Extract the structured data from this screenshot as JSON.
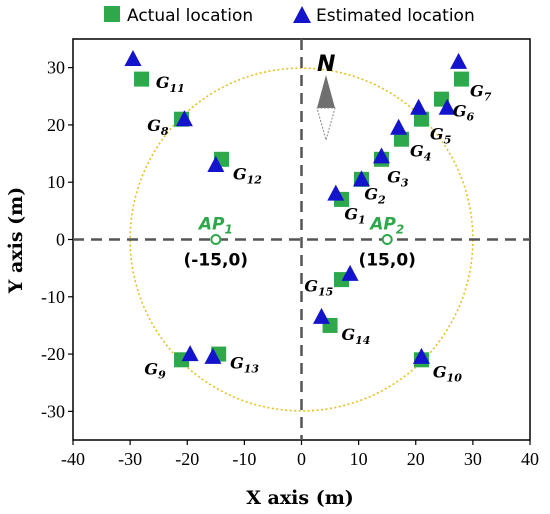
{
  "chart_data": {
    "type": "scatter",
    "xlabel": "X axis (m)",
    "ylabel": "Y axis (m)",
    "xlim": [
      -40,
      40
    ],
    "ylim": [
      -35,
      35
    ],
    "xticks": [
      -40,
      -30,
      -20,
      -10,
      0,
      10,
      20,
      30,
      40
    ],
    "yticks": [
      -30,
      -20,
      -10,
      0,
      10,
      20,
      30
    ],
    "legend": {
      "placement": "top",
      "entries": [
        "Actual location",
        "Estimated location"
      ]
    },
    "colors": {
      "actual": "#2ea84a",
      "estimated": "#1414cc",
      "circle": "#e8c020",
      "ap": "#2ea84a"
    },
    "circle": {
      "center": [
        0,
        0
      ],
      "radius": 30
    },
    "north_label": "N",
    "access_points": [
      {
        "label": "AP",
        "sub": "1",
        "x": -15,
        "y": 0,
        "coord_label": "(-15,0)"
      },
      {
        "label": "AP",
        "sub": "2",
        "x": 15,
        "y": 0,
        "coord_label": "(15,0)"
      }
    ],
    "series": [
      {
        "name": "Actual location",
        "points": [
          {
            "id": "G1",
            "x": 7,
            "y": 7
          },
          {
            "id": "G2",
            "x": 10.5,
            "y": 10.5
          },
          {
            "id": "G3",
            "x": 14,
            "y": 14
          },
          {
            "id": "G4",
            "x": 17.5,
            "y": 17.5
          },
          {
            "id": "G5",
            "x": 21,
            "y": 21
          },
          {
            "id": "G6",
            "x": 24.5,
            "y": 24.5
          },
          {
            "id": "G7",
            "x": 28,
            "y": 28
          },
          {
            "id": "G8",
            "x": -21,
            "y": 21
          },
          {
            "id": "G9",
            "x": -21,
            "y": -21
          },
          {
            "id": "G10",
            "x": 21,
            "y": -21
          },
          {
            "id": "G11",
            "x": -28,
            "y": 28
          },
          {
            "id": "G12",
            "x": -14,
            "y": 14
          },
          {
            "id": "G13",
            "x": -14.5,
            "y": -20
          },
          {
            "id": "G14",
            "x": 5,
            "y": -15
          },
          {
            "id": "G15",
            "x": 7,
            "y": -7
          }
        ]
      },
      {
        "name": "Estimated location",
        "points": [
          {
            "id": "G1",
            "x": 6,
            "y": 8
          },
          {
            "id": "G2",
            "x": 10.5,
            "y": 10.5
          },
          {
            "id": "G3",
            "x": 14,
            "y": 14.5
          },
          {
            "id": "G4",
            "x": 17,
            "y": 19.5
          },
          {
            "id": "G5",
            "x": 20.5,
            "y": 23
          },
          {
            "id": "G6",
            "x": 25.5,
            "y": 23
          },
          {
            "id": "G7",
            "x": 27.5,
            "y": 31
          },
          {
            "id": "G8",
            "x": -20.5,
            "y": 21
          },
          {
            "id": "G9",
            "x": -19.5,
            "y": -20
          },
          {
            "id": "G10",
            "x": 21,
            "y": -20.5
          },
          {
            "id": "G11",
            "x": -29.5,
            "y": 31.5
          },
          {
            "id": "G12",
            "x": -15,
            "y": 13
          },
          {
            "id": "G13",
            "x": -15.5,
            "y": -20.5
          },
          {
            "id": "G14",
            "x": 3.5,
            "y": -13.5
          },
          {
            "id": "G15",
            "x": 8.5,
            "y": -6
          }
        ]
      }
    ],
    "point_labels": [
      {
        "name": "G",
        "sub": "1",
        "x": 7.5,
        "y": 4.5
      },
      {
        "name": "G",
        "sub": "2",
        "x": 11,
        "y": 8
      },
      {
        "name": "G",
        "sub": "3",
        "x": 15,
        "y": 11
      },
      {
        "name": "G",
        "sub": "4",
        "x": 19,
        "y": 15.5
      },
      {
        "name": "G",
        "sub": "5",
        "x": 22.5,
        "y": 18.5
      },
      {
        "name": "G",
        "sub": "6",
        "x": 26.5,
        "y": 22.5
      },
      {
        "name": "G",
        "sub": "7",
        "x": 29.5,
        "y": 26
      },
      {
        "name": "G",
        "sub": "8",
        "x": -27,
        "y": 20
      },
      {
        "name": "G",
        "sub": "9",
        "x": -27.5,
        "y": -22.5
      },
      {
        "name": "G",
        "sub": "10",
        "x": 23,
        "y": -23
      },
      {
        "name": "G",
        "sub": "11",
        "x": -25.5,
        "y": 27.5
      },
      {
        "name": "G",
        "sub": "12",
        "x": -12,
        "y": 11.5
      },
      {
        "name": "G",
        "sub": "13",
        "x": -12.5,
        "y": -21.5
      },
      {
        "name": "G",
        "sub": "14",
        "x": 7,
        "y": -16.5
      },
      {
        "name": "G",
        "sub": "15",
        "x": 0.5,
        "y": -8
      }
    ]
  }
}
